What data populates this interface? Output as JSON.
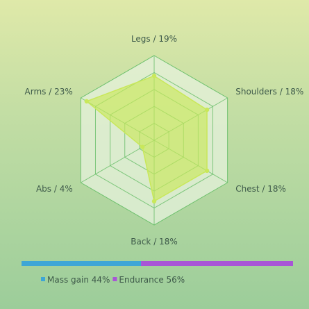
{
  "chart_data": {
    "type": "radar",
    "title": "",
    "axes": [
      "Legs / 19%",
      "Shoulders / 18%",
      "Chest / 18%",
      "Back / 18%",
      "Abs / 4%",
      "Arms / 23%"
    ],
    "values": [
      19,
      18,
      18,
      18,
      4,
      23
    ],
    "range": [
      0,
      25
    ],
    "grid_rings": 5,
    "fill_color": "#c9e85a",
    "grid_color": "#6cc06c",
    "hexagon_fill": "#e6f2dc"
  },
  "split_bar": {
    "segments": [
      {
        "label": "Mass gain 44%",
        "value": 44,
        "color": "#3ea6d6"
      },
      {
        "label": "Endurance 56%",
        "value": 56,
        "color": "#a855d6"
      }
    ]
  }
}
